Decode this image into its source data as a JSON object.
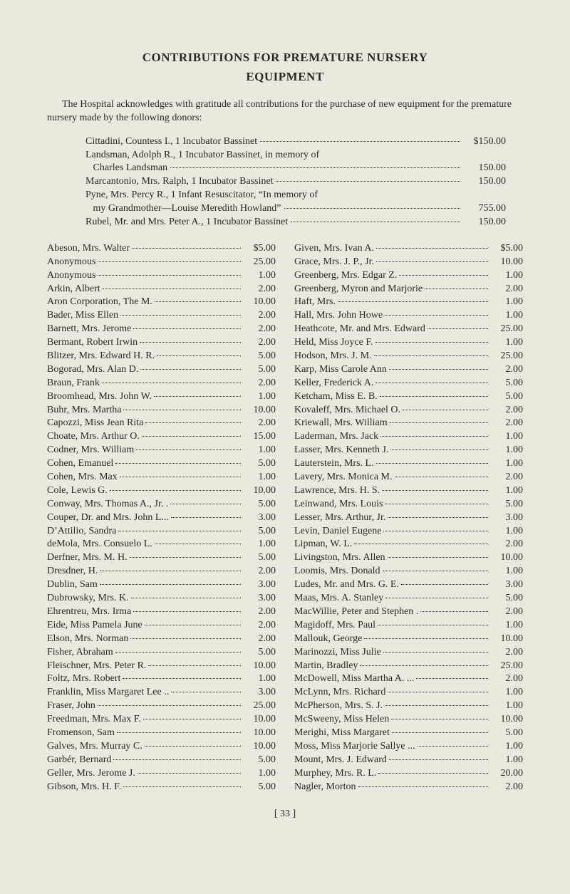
{
  "title_line1": "CONTRIBUTIONS FOR PREMATURE NURSERY",
  "title_line2": "EQUIPMENT",
  "intro": "The Hospital acknowledges with gratitude all contributions for the purchase of new equipment for the premature nursery made by the following donors:",
  "special": [
    {
      "label": "Cittadini, Countess I., 1 Incubator Bassinet",
      "amount": "$150.00"
    },
    {
      "label": "Landsman, Adolph R., 1 Incubator Bassinet, in memory of",
      "amount": ""
    },
    {
      "label": "   Charles Landsman",
      "amount": "150.00"
    },
    {
      "label": "Marcantonio, Mrs. Ralph, 1 Incubator Bassinet",
      "amount": "150.00"
    },
    {
      "label": "Pyne, Mrs. Percy R., 1 Infant Resuscitator, “In memory of",
      "amount": ""
    },
    {
      "label": "   my Grandmother—Louise Meredith Howland”",
      "amount": "755.00"
    },
    {
      "label": "Rubel, Mr. and Mrs. Peter A., 1 Incubator Bassinet",
      "amount": "150.00"
    }
  ],
  "left": [
    {
      "n": "Abeson, Mrs. Walter",
      "a": "$5.00"
    },
    {
      "n": "Anonymous",
      "a": "25.00"
    },
    {
      "n": "Anonymous",
      "a": "1.00"
    },
    {
      "n": "Arkin, Albert",
      "a": "2.00"
    },
    {
      "n": "Aron Corporation, The M.",
      "a": "10.00"
    },
    {
      "n": "Bader, Miss Ellen",
      "a": "2.00"
    },
    {
      "n": "Barnett, Mrs. Jerome",
      "a": "2.00"
    },
    {
      "n": "Bermant, Robert Irwin",
      "a": "2.00"
    },
    {
      "n": "Blitzer, Mrs. Edward H. R.",
      "a": "5.00"
    },
    {
      "n": "Bogorad, Mrs. Alan D.",
      "a": "5.00"
    },
    {
      "n": "Braun, Frank",
      "a": "2.00"
    },
    {
      "n": "Broomhead, Mrs. John W.",
      "a": "1.00"
    },
    {
      "n": "Buhr, Mrs. Martha",
      "a": "10.00"
    },
    {
      "n": "Capozzi, Miss Jean Rita",
      "a": "2.00"
    },
    {
      "n": "Choate, Mrs. Arthur O.",
      "a": "15.00"
    },
    {
      "n": "Codner, Mrs. William",
      "a": "1.00"
    },
    {
      "n": "Cohen, Emanuel",
      "a": "5.00"
    },
    {
      "n": "Cohen, Mrs. Max",
      "a": "1.00"
    },
    {
      "n": "Cole, Lewis G.",
      "a": "10.00"
    },
    {
      "n": "Conway, Mrs. Thomas A., Jr. .",
      "a": "5.00"
    },
    {
      "n": "Couper, Dr. and Mrs. John L...",
      "a": "3.00"
    },
    {
      "n": "D’Attilio, Sandra",
      "a": "5.00"
    },
    {
      "n": "deMola, Mrs. Consuelo L.",
      "a": "1.00"
    },
    {
      "n": "Derfner, Mrs. M. H.",
      "a": "5.00"
    },
    {
      "n": "Dresdner, H.",
      "a": "2.00"
    },
    {
      "n": "Dublin, Sam",
      "a": "3.00"
    },
    {
      "n": "Dubrowsky, Mrs. K.",
      "a": "3.00"
    },
    {
      "n": "Ehrentreu, Mrs. Irma",
      "a": "2.00"
    },
    {
      "n": "Eide, Miss Pamela June",
      "a": "2.00"
    },
    {
      "n": "Elson, Mrs. Norman",
      "a": "2.00"
    },
    {
      "n": "Fisher, Abraham",
      "a": "5.00"
    },
    {
      "n": "Fleischner, Mrs. Peter R.",
      "a": "10.00"
    },
    {
      "n": "Foltz, Mrs. Robert",
      "a": "1.00"
    },
    {
      "n": "Franklin, Miss Margaret Lee ..",
      "a": "3.00"
    },
    {
      "n": "Fraser, John",
      "a": "25.00"
    },
    {
      "n": "Freedman, Mrs. Max F.",
      "a": "10.00"
    },
    {
      "n": "Fromenson, Sam",
      "a": "10.00"
    },
    {
      "n": "Galves, Mrs. Murray C.",
      "a": "10.00"
    },
    {
      "n": "Garbér, Bernard",
      "a": "5.00"
    },
    {
      "n": "Geller, Mrs. Jerome J.",
      "a": "1.00"
    },
    {
      "n": "Gibson, Mrs. H. F.",
      "a": "5.00"
    }
  ],
  "right": [
    {
      "n": "Given, Mrs. Ivan A.",
      "a": "$5.00"
    },
    {
      "n": "Grace, Mrs. J. P., Jr.",
      "a": "10.00"
    },
    {
      "n": "Greenberg, Mrs. Edgar Z.",
      "a": "1.00"
    },
    {
      "n": "Greenberg, Myron and Marjorie",
      "a": "2.00"
    },
    {
      "n": "Haft, Mrs.",
      "a": "1.00"
    },
    {
      "n": "Hall, Mrs. John Howe",
      "a": "1.00"
    },
    {
      "n": "Heathcote, Mr. and Mrs. Edward",
      "a": "25.00"
    },
    {
      "n": "Held, Miss Joyce F.",
      "a": "1.00"
    },
    {
      "n": "Hodson, Mrs. J. M.",
      "a": "25.00"
    },
    {
      "n": "Karp, Miss Carole Ann",
      "a": "2.00"
    },
    {
      "n": "Keller, Frederick A.",
      "a": "5.00"
    },
    {
      "n": "Ketcham, Miss E. B.",
      "a": "5.00"
    },
    {
      "n": "Kovaleff, Mrs. Michael O.",
      "a": "2.00"
    },
    {
      "n": "Kriewall, Mrs. William",
      "a": "2.00"
    },
    {
      "n": "Laderman, Mrs. Jack",
      "a": "1.00"
    },
    {
      "n": "Lasser, Mrs. Kenneth J.",
      "a": "1.00"
    },
    {
      "n": "Lauterstein, Mrs. L.",
      "a": "1.00"
    },
    {
      "n": "Lavery, Mrs. Monica M.",
      "a": "2.00"
    },
    {
      "n": "Lawrence, Mrs. H. S.",
      "a": "1.00"
    },
    {
      "n": "Leinwand, Mrs. Louis",
      "a": "5.00"
    },
    {
      "n": "Lesser, Mrs. Arthur, Jr.",
      "a": "3.00"
    },
    {
      "n": "Levin, Daniel Eugene",
      "a": "1.00"
    },
    {
      "n": "Lipman, W. L.",
      "a": "2.00"
    },
    {
      "n": "Livingston, Mrs. Allen",
      "a": "10.00"
    },
    {
      "n": "Loomis, Mrs. Donald",
      "a": "1.00"
    },
    {
      "n": "Ludes, Mr. and Mrs. G. E.",
      "a": "3.00"
    },
    {
      "n": "Maas, Mrs. A. Stanley",
      "a": "5.00"
    },
    {
      "n": "MacWillie, Peter and Stephen .",
      "a": "2.00"
    },
    {
      "n": "Magidoff, Mrs. Paul",
      "a": "1.00"
    },
    {
      "n": "Mallouk, George",
      "a": "10.00"
    },
    {
      "n": "Marinozzi, Miss Julie",
      "a": "2.00"
    },
    {
      "n": "Martin, Bradley",
      "a": "25.00"
    },
    {
      "n": "McDowell, Miss Martha A. ...",
      "a": "2.00"
    },
    {
      "n": "McLynn, Mrs. Richard",
      "a": "1.00"
    },
    {
      "n": "McPherson, Mrs. S. J.",
      "a": "1.00"
    },
    {
      "n": "McSweeny, Miss Helen",
      "a": "10.00"
    },
    {
      "n": "Merighi, Miss Margaret",
      "a": "5.00"
    },
    {
      "n": "Moss, Miss Marjorie Sallye ...",
      "a": "1.00"
    },
    {
      "n": "Mount, Mrs. J. Edward",
      "a": "1.00"
    },
    {
      "n": "Murphey, Mrs. R. L.",
      "a": "20.00"
    },
    {
      "n": "Nagler, Morton",
      "a": "2.00"
    }
  ],
  "page_number": "[ 33 ]"
}
